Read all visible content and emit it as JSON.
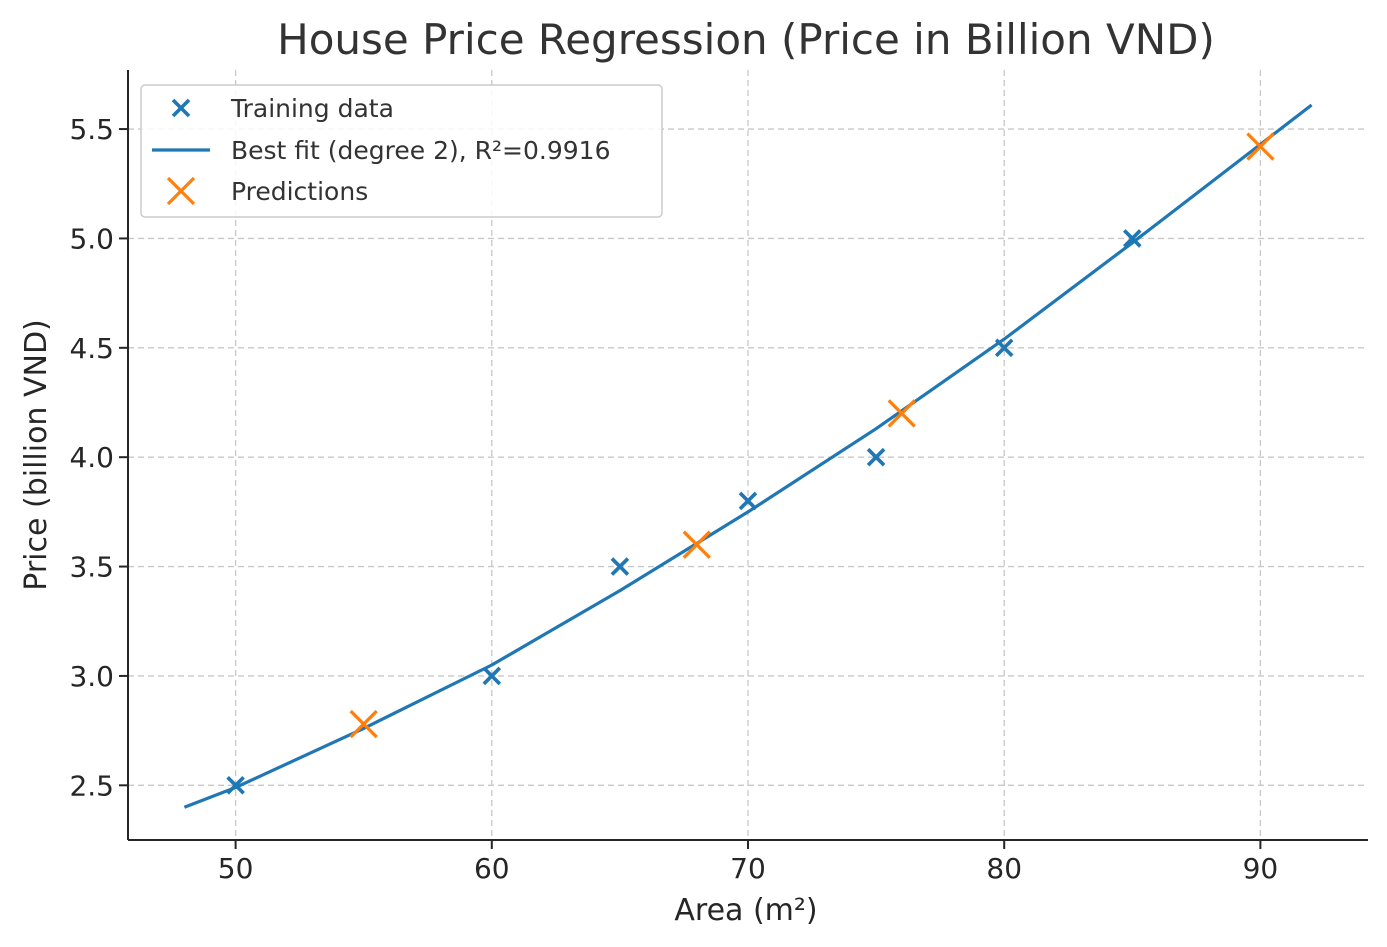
{
  "chart_data": {
    "type": "scatter",
    "title": "House Price Regression (Price in Billion VND)",
    "xlabel": "Area (m²)",
    "ylabel": "Price (billion VND)",
    "xlim": [
      45.8,
      94.2
    ],
    "ylim": [
      2.25,
      5.77
    ],
    "xticks": [
      50,
      60,
      70,
      80,
      90
    ],
    "yticks": [
      2.5,
      3.0,
      3.5,
      4.0,
      4.5,
      5.0,
      5.5
    ],
    "xtick_labels": [
      "50",
      "60",
      "70",
      "80",
      "90"
    ],
    "ytick_labels": [
      "2.5",
      "3.0",
      "3.5",
      "4.0",
      "4.5",
      "5.0",
      "5.5"
    ],
    "grid": true,
    "legend_position": "upper-left",
    "series": [
      {
        "name": "Training data",
        "kind": "scatter",
        "marker": "x",
        "color": "#1f77b4",
        "x": [
          50,
          60,
          65,
          70,
          75,
          80,
          85
        ],
        "y": [
          2.5,
          3.0,
          3.5,
          3.8,
          4.0,
          4.5,
          5.0
        ]
      },
      {
        "name": "Best fit (degree 2), R²=0.9916",
        "kind": "line",
        "color": "#1f77b4",
        "x": [
          48,
          50,
          55,
          60,
          65,
          70,
          75,
          80,
          85,
          90,
          92
        ],
        "y": [
          2.4,
          2.49,
          2.76,
          3.05,
          3.39,
          3.75,
          4.13,
          4.54,
          4.98,
          5.43,
          5.61
        ]
      },
      {
        "name": "Predictions",
        "kind": "scatter",
        "marker": "x",
        "color": "#ff7f0e",
        "x": [
          55,
          68,
          76,
          90
        ],
        "y": [
          2.78,
          3.6,
          4.2,
          5.42
        ]
      }
    ]
  }
}
